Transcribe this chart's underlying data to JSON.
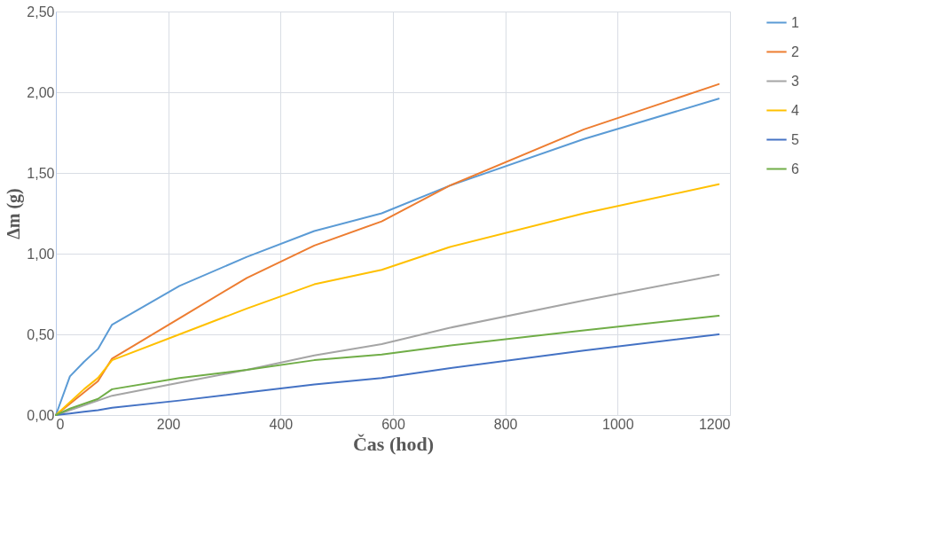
{
  "chart_data": {
    "type": "line",
    "xlabel": "Čas (hod)",
    "ylabel": "Δm (g)",
    "x": [
      0,
      25,
      50,
      75,
      100,
      220,
      340,
      460,
      580,
      700,
      940,
      1180
    ],
    "series": [
      {
        "name": "1",
        "color": "#5b9bd5",
        "values": [
          0,
          0.24,
          0.33,
          0.41,
          0.56,
          0.8,
          0.98,
          1.14,
          1.25,
          1.42,
          1.71,
          1.96
        ]
      },
      {
        "name": "2",
        "color": "#ed7d31",
        "values": [
          0,
          0.07,
          0.14,
          0.21,
          0.35,
          0.6,
          0.85,
          1.05,
          1.2,
          1.42,
          1.77,
          2.05
        ]
      },
      {
        "name": "3",
        "color": "#a5a5a5",
        "values": [
          0,
          0.03,
          0.06,
          0.09,
          0.12,
          0.2,
          0.28,
          0.37,
          0.44,
          0.54,
          0.71,
          0.87
        ]
      },
      {
        "name": "4",
        "color": "#ffc000",
        "values": [
          0,
          0.08,
          0.16,
          0.23,
          0.34,
          0.5,
          0.66,
          0.81,
          0.9,
          1.04,
          1.25,
          1.43
        ]
      },
      {
        "name": "5",
        "color": "#4472c4",
        "values": [
          0,
          0.01,
          0.02,
          0.03,
          0.045,
          0.09,
          0.14,
          0.19,
          0.23,
          0.29,
          0.4,
          0.5
        ]
      },
      {
        "name": "6",
        "color": "#70ad47",
        "values": [
          0,
          0.04,
          0.07,
          0.1,
          0.16,
          0.23,
          0.28,
          0.34,
          0.375,
          0.43,
          0.525,
          0.615
        ]
      }
    ],
    "xlim": [
      0,
      1200
    ],
    "xticks": [
      0,
      200,
      400,
      600,
      800,
      1000,
      1200
    ],
    "ylim": [
      0,
      2.5
    ],
    "yticks": [
      {
        "value": 0,
        "label": "0,00"
      },
      {
        "value": 0.5,
        "label": "0,50"
      },
      {
        "value": 1,
        "label": "1,00"
      },
      {
        "value": 1.5,
        "label": "1,50"
      },
      {
        "value": 2,
        "label": "2,00"
      },
      {
        "value": 2.5,
        "label": "2,50"
      }
    ],
    "grid": true,
    "legend": "right",
    "marker": "none",
    "line_style": "solid"
  }
}
